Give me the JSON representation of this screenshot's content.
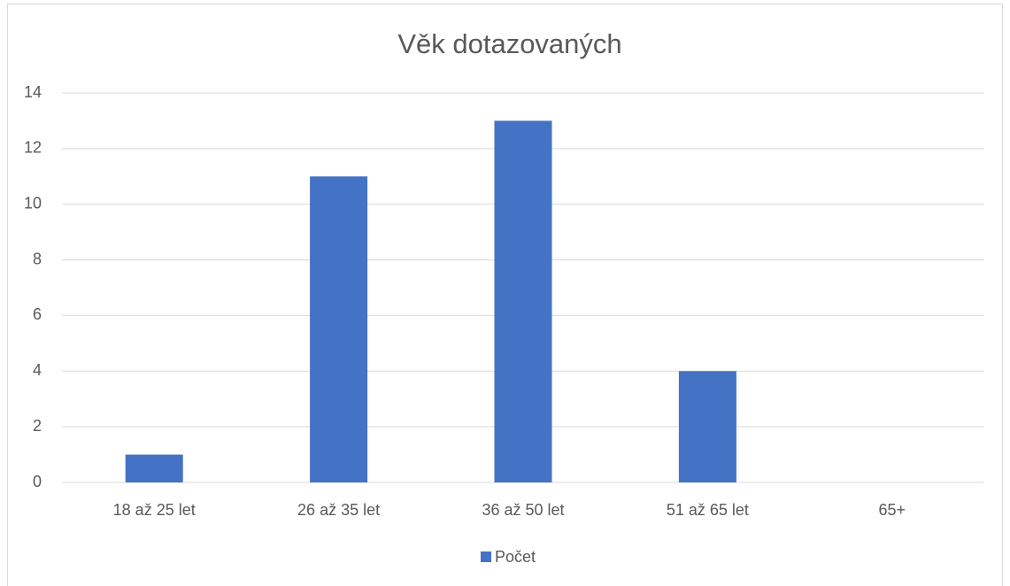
{
  "chart_data": {
    "type": "bar",
    "title": "Věk dotazovaných",
    "categories": [
      "18 až 25 let",
      "26 až 35 let",
      "36 až 50 let",
      "51 až 65 let",
      "65+"
    ],
    "series": [
      {
        "name": "Počet",
        "color": "#4472c4",
        "values": [
          1,
          11,
          13,
          4,
          0
        ]
      }
    ],
    "ylim": [
      0,
      14
    ],
    "yticks": [
      0,
      2,
      4,
      6,
      8,
      10,
      12,
      14
    ],
    "grid": true,
    "legend": "bottom"
  }
}
